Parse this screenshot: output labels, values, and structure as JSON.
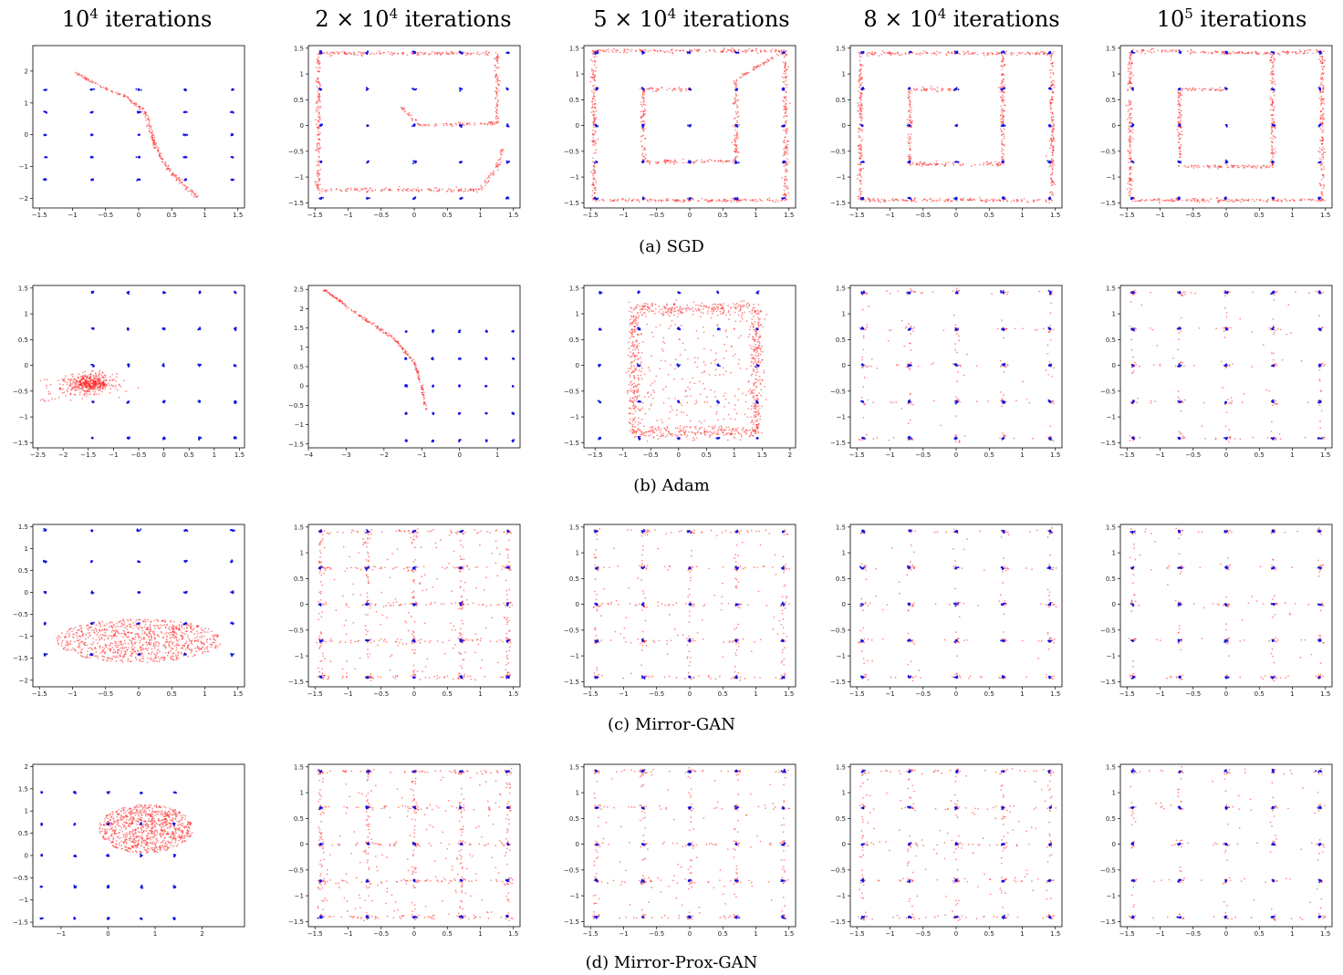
{
  "column_titles": [
    {
      "base": "10",
      "exp": "4",
      "suffix": " iterations"
    },
    {
      "base": "2 × 10",
      "exp": "4",
      "suffix": " iterations"
    },
    {
      "base": "5 × 10",
      "exp": "4",
      "suffix": " iterations"
    },
    {
      "base": "8 × 10",
      "exp": "4",
      "suffix": " iterations"
    },
    {
      "base": "10",
      "exp": "5",
      "suffix": " iterations"
    }
  ],
  "row_captions": [
    "(a)  SGD",
    "(b)  Adam",
    "(c)  Mirror-GAN",
    "(d)  Mirror-Prox-GAN"
  ],
  "colors": {
    "real": "#1010e0",
    "generated": "#ff2020",
    "axis": "#000000"
  },
  "chart_data": [
    {
      "type": "scatter",
      "row": "SGD",
      "iterations": "10^4",
      "pattern": "curve",
      "xlim": [
        -1.6,
        1.6
      ],
      "ylim": [
        -2.3,
        2.8
      ],
      "xticks": [
        -1.5,
        -1.0,
        -0.5,
        0.0,
        0.5,
        1.0,
        1.5
      ],
      "yticks": [
        -2,
        -1,
        0,
        1,
        2
      ],
      "curve": [
        [
          -1.0,
          2.0
        ],
        [
          -0.6,
          1.55
        ],
        [
          -0.2,
          1.2
        ],
        [
          0.1,
          0.7
        ],
        [
          0.25,
          -0.3
        ],
        [
          0.35,
          -0.8
        ],
        [
          0.55,
          -1.3
        ],
        [
          0.9,
          -2.0
        ]
      ],
      "series": [
        {
          "name": "",
          "role": "real"
        },
        {
          "name": "",
          "role": "generated"
        }
      ]
    },
    {
      "type": "scatter",
      "row": "SGD",
      "iterations": "2x10^4",
      "pattern": "curve",
      "xlim": [
        -1.6,
        1.6
      ],
      "ylim": [
        -1.6,
        1.55
      ],
      "xticks": [
        -1.5,
        -1.0,
        -0.5,
        0.0,
        0.5,
        1.0,
        1.5
      ],
      "yticks": [
        -1.5,
        -1.0,
        -0.5,
        0.0,
        0.5,
        1.0,
        1.5
      ],
      "curve": [
        [
          -0.2,
          0.35
        ],
        [
          0.1,
          0.0
        ],
        [
          1.25,
          0.05
        ],
        [
          1.25,
          1.4
        ],
        [
          -1.45,
          1.4
        ],
        [
          -1.45,
          -1.25
        ],
        [
          1.0,
          -1.25
        ],
        [
          1.25,
          -0.8
        ],
        [
          1.35,
          -0.4
        ]
      ],
      "series": [
        {
          "name": "",
          "role": "real"
        },
        {
          "name": "",
          "role": "generated"
        }
      ]
    },
    {
      "type": "scatter",
      "row": "SGD",
      "iterations": "5x10^4",
      "pattern": "curve",
      "xlim": [
        -1.6,
        1.6
      ],
      "ylim": [
        -1.6,
        1.55
      ],
      "xticks": [
        -1.5,
        -1.0,
        -0.5,
        0.0,
        0.5,
        1.0,
        1.5
      ],
      "yticks": [
        -1.5,
        -1.0,
        -0.5,
        0.0,
        0.5,
        1.0,
        1.5
      ],
      "curve": [
        [
          0.0,
          0.7
        ],
        [
          -0.7,
          0.7
        ],
        [
          -0.7,
          -0.7
        ],
        [
          0.7,
          -0.7
        ],
        [
          0.7,
          0.7
        ],
        [
          0.7,
          0.9
        ],
        [
          1.45,
          1.45
        ],
        [
          -1.45,
          1.45
        ],
        [
          -1.45,
          -1.45
        ],
        [
          1.45,
          -1.45
        ],
        [
          1.45,
          1.45
        ]
      ],
      "series": [
        {
          "name": "",
          "role": "real"
        },
        {
          "name": "",
          "role": "generated"
        }
      ]
    },
    {
      "type": "scatter",
      "row": "SGD",
      "iterations": "8x10^4",
      "pattern": "curve",
      "xlim": [
        -1.6,
        1.6
      ],
      "ylim": [
        -1.6,
        1.55
      ],
      "xticks": [
        -1.5,
        -1.0,
        -0.5,
        0.0,
        0.5,
        1.0,
        1.5
      ],
      "yticks": [
        -1.5,
        -1.0,
        -0.5,
        0.0,
        0.5,
        1.0,
        1.5
      ],
      "curve": [
        [
          0.0,
          0.7
        ],
        [
          -0.7,
          0.7
        ],
        [
          -0.7,
          -0.75
        ],
        [
          0.7,
          -0.75
        ],
        [
          0.7,
          0.7
        ],
        [
          0.7,
          1.4
        ],
        [
          -1.45,
          1.4
        ],
        [
          -1.45,
          -1.45
        ],
        [
          1.45,
          -1.45
        ],
        [
          1.45,
          1.4
        ],
        [
          0.7,
          1.4
        ]
      ],
      "series": [
        {
          "name": "",
          "role": "real"
        },
        {
          "name": "",
          "role": "generated"
        }
      ]
    },
    {
      "type": "scatter",
      "row": "SGD",
      "iterations": "10^5",
      "pattern": "curve",
      "xlim": [
        -1.6,
        1.6
      ],
      "ylim": [
        -1.6,
        1.55
      ],
      "xticks": [
        -1.5,
        -1.0,
        -0.5,
        0.0,
        0.5,
        1.0,
        1.5
      ],
      "yticks": [
        -1.5,
        -1.0,
        -0.5,
        0.0,
        0.5,
        1.0,
        1.5
      ],
      "curve": [
        [
          0.0,
          0.7
        ],
        [
          -0.7,
          0.7
        ],
        [
          -0.7,
          -0.8
        ],
        [
          0.7,
          -0.8
        ],
        [
          0.7,
          0.7
        ],
        [
          0.7,
          1.4
        ],
        [
          -1.45,
          1.45
        ],
        [
          -1.45,
          -1.45
        ],
        [
          1.45,
          -1.45
        ],
        [
          1.45,
          1.45
        ],
        [
          0.7,
          1.4
        ]
      ],
      "series": [
        {
          "name": "",
          "role": "real"
        },
        {
          "name": "",
          "role": "generated"
        }
      ]
    },
    {
      "type": "scatter",
      "row": "Adam",
      "iterations": "10^4",
      "pattern": "blob",
      "xlim": [
        -2.6,
        1.6
      ],
      "ylim": [
        -1.6,
        1.55
      ],
      "xticks": [
        -2.5,
        -2.0,
        -1.5,
        -1.0,
        -0.5,
        0.0,
        0.5,
        1.0,
        1.5
      ],
      "yticks": [
        -1.5,
        -1.0,
        -0.5,
        0.0,
        0.5,
        1.0,
        1.5
      ],
      "blob": {
        "cx": -1.45,
        "cy": -0.35,
        "sx": 0.22,
        "sy": 0.09
      },
      "series": [
        {
          "name": "",
          "role": "real"
        },
        {
          "name": "",
          "role": "generated"
        }
      ]
    },
    {
      "type": "scatter",
      "row": "Adam",
      "iterations": "2x10^4",
      "pattern": "curve",
      "xlim": [
        -4.0,
        1.6
      ],
      "ylim": [
        -1.6,
        2.6
      ],
      "xticks": [
        -4,
        -3,
        -2,
        -1,
        0,
        1
      ],
      "yticks": [
        -1.5,
        -1.0,
        -0.5,
        0.0,
        0.5,
        1.0,
        1.5,
        2.0,
        2.5
      ],
      "curve": [
        [
          -3.6,
          2.5
        ],
        [
          -2.6,
          1.8
        ],
        [
          -1.7,
          1.2
        ],
        [
          -1.2,
          0.6
        ],
        [
          -1.0,
          0.0
        ],
        [
          -0.9,
          -0.6
        ]
      ],
      "series": [
        {
          "name": "",
          "role": "real"
        },
        {
          "name": "",
          "role": "generated"
        }
      ]
    },
    {
      "type": "scatter",
      "row": "Adam",
      "iterations": "5x10^4",
      "pattern": "square-noisy",
      "xlim": [
        -1.7,
        2.1
      ],
      "ylim": [
        -1.6,
        1.55
      ],
      "xticks": [
        -1.5,
        -1.0,
        -0.5,
        0.0,
        0.5,
        1.0,
        1.5,
        2.0
      ],
      "yticks": [
        -1.5,
        -1.0,
        -0.5,
        0.0,
        0.5,
        1.0,
        1.5
      ],
      "square": [
        -0.8,
        1.4,
        -1.3,
        1.1
      ],
      "series": [
        {
          "name": "",
          "role": "real"
        },
        {
          "name": "",
          "role": "generated"
        }
      ]
    },
    {
      "type": "scatter",
      "row": "Adam",
      "iterations": "8x10^4",
      "pattern": "grid-sparse",
      "xlim": [
        -1.6,
        1.6
      ],
      "ylim": [
        -1.6,
        1.55
      ],
      "xticks": [
        -1.5,
        -1.0,
        -0.5,
        0.0,
        0.5,
        1.0,
        1.5
      ],
      "yticks": [
        -1.5,
        -1.0,
        -0.5,
        0.0,
        0.5,
        1.0,
        1.5
      ],
      "series": [
        {
          "name": "",
          "role": "real"
        },
        {
          "name": "",
          "role": "generated"
        }
      ]
    },
    {
      "type": "scatter",
      "row": "Adam",
      "iterations": "10^5",
      "pattern": "grid-sparse",
      "xlim": [
        -1.6,
        1.6
      ],
      "ylim": [
        -1.6,
        1.55
      ],
      "xticks": [
        -1.5,
        -1.0,
        -0.5,
        0.0,
        0.5,
        1.0,
        1.5
      ],
      "yticks": [
        -1.5,
        -1.0,
        -0.5,
        0.0,
        0.5,
        1.0,
        1.5
      ],
      "series": [
        {
          "name": "",
          "role": "real"
        },
        {
          "name": "",
          "role": "generated"
        }
      ]
    },
    {
      "type": "scatter",
      "row": "Mirror-GAN",
      "iterations": "10^4",
      "pattern": "ellipse-cloud",
      "xlim": [
        -1.6,
        1.6
      ],
      "ylim": [
        -2.15,
        1.55
      ],
      "xticks": [
        -1.5,
        -1.0,
        -0.5,
        0.0,
        0.5,
        1.0,
        1.5
      ],
      "yticks": [
        -2.0,
        -1.5,
        -1.0,
        -0.5,
        0.0,
        0.5,
        1.0,
        1.5
      ],
      "blob": {
        "cx": 0.0,
        "cy": -1.1,
        "sx": 1.25,
        "sy": 0.5
      },
      "series": [
        {
          "name": "",
          "role": "real"
        },
        {
          "name": "",
          "role": "generated"
        }
      ]
    },
    {
      "type": "scatter",
      "row": "Mirror-GAN",
      "iterations": "2x10^4",
      "pattern": "grid-dense",
      "xlim": [
        -1.6,
        1.6
      ],
      "ylim": [
        -1.6,
        1.55
      ],
      "xticks": [
        -1.5,
        -1.0,
        -0.5,
        0.0,
        0.5,
        1.0,
        1.5
      ],
      "yticks": [
        -1.5,
        -1.0,
        -0.5,
        0.0,
        0.5,
        1.0,
        1.5
      ],
      "series": [
        {
          "name": "",
          "role": "real"
        },
        {
          "name": "",
          "role": "generated"
        }
      ]
    },
    {
      "type": "scatter",
      "row": "Mirror-GAN",
      "iterations": "5x10^4",
      "pattern": "grid-medium",
      "xlim": [
        -1.6,
        1.6
      ],
      "ylim": [
        -1.6,
        1.55
      ],
      "xticks": [
        -1.5,
        -1.0,
        -0.5,
        0.0,
        0.5,
        1.0,
        1.5
      ],
      "yticks": [
        -1.5,
        -1.0,
        -0.5,
        0.0,
        0.5,
        1.0,
        1.5
      ],
      "series": [
        {
          "name": "",
          "role": "real"
        },
        {
          "name": "",
          "role": "generated"
        }
      ]
    },
    {
      "type": "scatter",
      "row": "Mirror-GAN",
      "iterations": "8x10^4",
      "pattern": "grid-sparse",
      "xlim": [
        -1.6,
        1.6
      ],
      "ylim": [
        -1.6,
        1.55
      ],
      "xticks": [
        -1.5,
        -1.0,
        -0.5,
        0.0,
        0.5,
        1.0,
        1.5
      ],
      "yticks": [
        -1.5,
        -1.0,
        -0.5,
        0.0,
        0.5,
        1.0,
        1.5
      ],
      "series": [
        {
          "name": "",
          "role": "real"
        },
        {
          "name": "",
          "role": "generated"
        }
      ]
    },
    {
      "type": "scatter",
      "row": "Mirror-GAN",
      "iterations": "10^5",
      "pattern": "grid-sparse",
      "xlim": [
        -1.6,
        1.6
      ],
      "ylim": [
        -1.6,
        1.55
      ],
      "xticks": [
        -1.5,
        -1.0,
        -0.5,
        0.0,
        0.5,
        1.0,
        1.5
      ],
      "yticks": [
        -1.5,
        -1.0,
        -0.5,
        0.0,
        0.5,
        1.0,
        1.5
      ],
      "series": [
        {
          "name": "",
          "role": "real"
        },
        {
          "name": "",
          "role": "generated"
        }
      ]
    },
    {
      "type": "scatter",
      "row": "Mirror-Prox-GAN",
      "iterations": "10^4",
      "pattern": "triangle-cloud",
      "xlim": [
        -1.6,
        2.9
      ],
      "ylim": [
        -1.6,
        2.05
      ],
      "xticks": [
        -1,
        0,
        1,
        2
      ],
      "yticks": [
        -1.5,
        -1.0,
        -0.5,
        0.0,
        0.5,
        1.0,
        1.5,
        2.0
      ],
      "blob": {
        "cx": 0.8,
        "cy": 0.6,
        "sx": 1.0,
        "sy": 0.55
      },
      "series": [
        {
          "name": "",
          "role": "real"
        },
        {
          "name": "",
          "role": "generated"
        }
      ]
    },
    {
      "type": "scatter",
      "row": "Mirror-Prox-GAN",
      "iterations": "2x10^4",
      "pattern": "grid-dense",
      "xlim": [
        -1.6,
        1.6
      ],
      "ylim": [
        -1.6,
        1.55
      ],
      "xticks": [
        -1.5,
        -1.0,
        -0.5,
        0.0,
        0.5,
        1.0,
        1.5
      ],
      "yticks": [
        -1.5,
        -1.0,
        -0.5,
        0.0,
        0.5,
        1.0,
        1.5
      ],
      "series": [
        {
          "name": "",
          "role": "real"
        },
        {
          "name": "",
          "role": "generated"
        }
      ]
    },
    {
      "type": "scatter",
      "row": "Mirror-Prox-GAN",
      "iterations": "5x10^4",
      "pattern": "grid-medium",
      "xlim": [
        -1.6,
        1.6
      ],
      "ylim": [
        -1.6,
        1.55
      ],
      "xticks": [
        -1.5,
        -1.0,
        -0.5,
        0.0,
        0.5,
        1.0,
        1.5
      ],
      "yticks": [
        -1.5,
        -1.0,
        -0.5,
        0.0,
        0.5,
        1.0,
        1.5
      ],
      "series": [
        {
          "name": "",
          "role": "real"
        },
        {
          "name": "",
          "role": "generated"
        }
      ]
    },
    {
      "type": "scatter",
      "row": "Mirror-Prox-GAN",
      "iterations": "8x10^4",
      "pattern": "grid-medium",
      "xlim": [
        -1.6,
        1.6
      ],
      "ylim": [
        -1.6,
        1.55
      ],
      "xticks": [
        -1.5,
        -1.0,
        -0.5,
        0.0,
        0.5,
        1.0,
        1.5
      ],
      "yticks": [
        -1.5,
        -1.0,
        -0.5,
        0.0,
        0.5,
        1.0,
        1.5
      ],
      "series": [
        {
          "name": "",
          "role": "real"
        },
        {
          "name": "",
          "role": "generated"
        }
      ]
    },
    {
      "type": "scatter",
      "row": "Mirror-Prox-GAN",
      "iterations": "10^5",
      "pattern": "grid-sparse",
      "xlim": [
        -1.6,
        1.6
      ],
      "ylim": [
        -1.6,
        1.55
      ],
      "xticks": [
        -1.5,
        -1.0,
        -0.5,
        0.0,
        0.5,
        1.0,
        1.5
      ],
      "yticks": [
        -1.5,
        -1.0,
        -0.5,
        0.0,
        0.5,
        1.0,
        1.5
      ],
      "series": [
        {
          "name": "",
          "role": "real"
        },
        {
          "name": "",
          "role": "generated"
        }
      ]
    }
  ]
}
